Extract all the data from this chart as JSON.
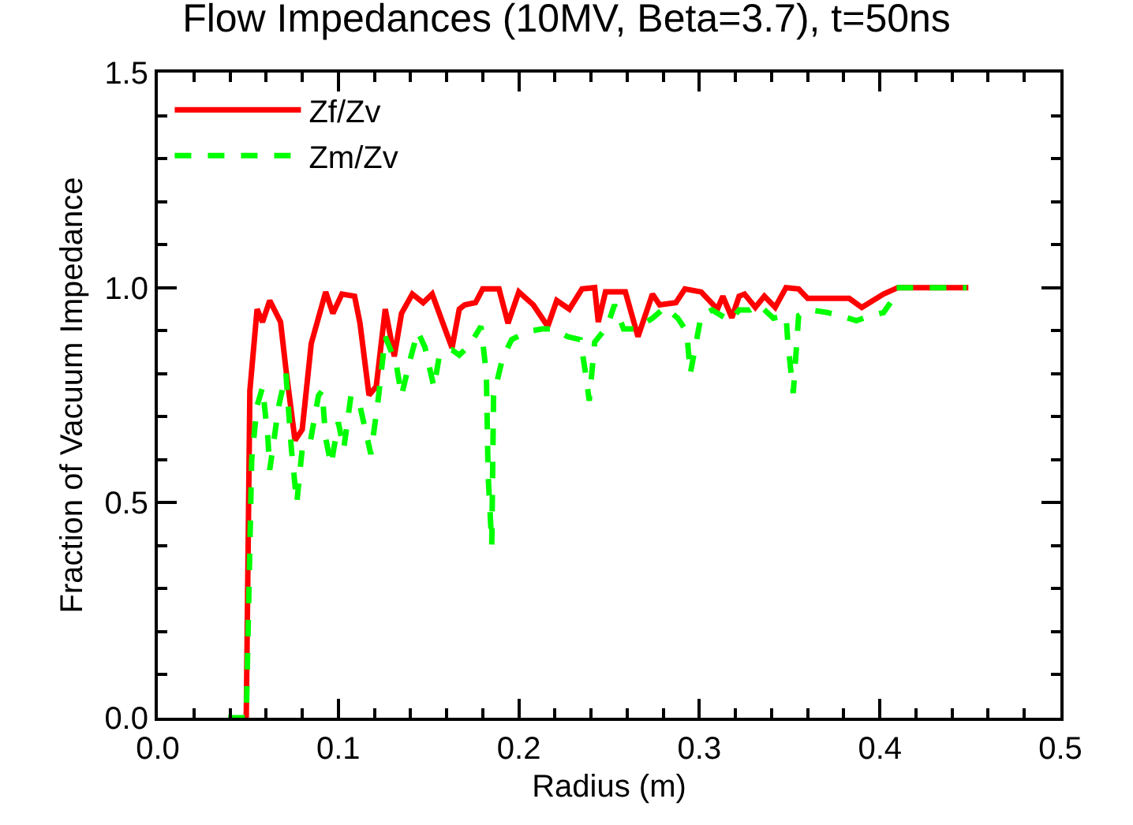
{
  "chart_data": {
    "type": "line",
    "title": "Flow Impedances (10MV, Beta=3.7), t=50ns",
    "xlabel": "Radius (m)",
    "ylabel": "Fraction of Vacuum Impedance",
    "xlim": [
      0,
      0.5
    ],
    "xticks": [
      {
        "value": 0,
        "label": "0.0"
      },
      0.1,
      0.2,
      0.3,
      0.4,
      0.5
    ],
    "ylim": [
      0,
      1.5
    ],
    "yticks": [
      {
        "value": 0,
        "label": "0.0"
      },
      0.5,
      {
        "value": 1,
        "label": "1.0"
      },
      1.5
    ],
    "legend": "top left",
    "series": [
      {
        "name": "Zf/Zv",
        "color": "#ff0000",
        "line_style": "solid",
        "x": [
          0.049,
          0.051,
          0.055,
          0.058,
          0.062,
          0.068,
          0.071,
          0.076,
          0.08,
          0.085,
          0.093,
          0.097,
          0.102,
          0.109,
          0.112,
          0.117,
          0.121,
          0.126,
          0.131,
          0.135,
          0.141,
          0.147,
          0.152,
          0.159,
          0.163,
          0.167,
          0.17,
          0.176,
          0.18,
          0.189,
          0.194,
          0.2,
          0.208,
          0.216,
          0.221,
          0.228,
          0.235,
          0.242,
          0.244,
          0.248,
          0.259,
          0.266,
          0.274,
          0.278,
          0.287,
          0.292,
          0.301,
          0.31,
          0.313,
          0.318,
          0.322,
          0.325,
          0.331,
          0.336,
          0.342,
          0.348,
          0.355,
          0.36,
          0.383,
          0.39,
          0.402,
          0.41,
          0.449
        ],
        "values": [
          0,
          0.76,
          0.95,
          0.92,
          0.97,
          0.92,
          0.81,
          0.645,
          0.67,
          0.87,
          0.99,
          0.94,
          0.985,
          0.98,
          0.917,
          0.75,
          0.77,
          0.95,
          0.84,
          0.94,
          0.985,
          0.965,
          0.985,
          0.905,
          0.86,
          0.95,
          0.96,
          0.965,
          0.997,
          0.997,
          0.917,
          0.99,
          0.96,
          0.91,
          0.97,
          0.95,
          0.997,
          1.0,
          0.92,
          0.99,
          0.99,
          0.886,
          0.985,
          0.96,
          0.965,
          0.997,
          0.99,
          0.95,
          0.98,
          0.93,
          0.98,
          0.985,
          0.954,
          0.98,
          0.954,
          1.0,
          0.997,
          0.975,
          0.975,
          0.954,
          0.985,
          1.0,
          1.0
        ]
      },
      {
        "name": "Zm/Zv",
        "color": "#00ff00",
        "line_style": "dashed",
        "x": [
          0.039,
          0.049,
          0.052,
          0.055,
          0.058,
          0.061,
          0.062,
          0.067,
          0.071,
          0.074,
          0.077,
          0.08,
          0.084,
          0.089,
          0.091,
          0.093,
          0.096,
          0.1,
          0.103,
          0.107,
          0.112,
          0.118,
          0.122,
          0.126,
          0.132,
          0.135,
          0.14,
          0.144,
          0.148,
          0.153,
          0.156,
          0.163,
          0.167,
          0.173,
          0.179,
          0.182,
          0.183,
          0.185,
          0.186,
          0.191,
          0.196,
          0.205,
          0.213,
          0.22,
          0.227,
          0.234,
          0.237,
          0.239,
          0.242,
          0.249,
          0.253,
          0.258,
          0.265,
          0.274,
          0.281,
          0.288,
          0.293,
          0.295,
          0.298,
          0.301,
          0.307,
          0.317,
          0.322,
          0.328,
          0.333,
          0.341,
          0.348,
          0.349,
          0.352,
          0.355,
          0.362,
          0.371,
          0.378,
          0.387,
          0.395,
          0.402,
          0.406,
          0.409,
          0.448
        ],
        "values": [
          0,
          0,
          0.6,
          0.725,
          0.768,
          0.65,
          0.576,
          0.725,
          0.8,
          0.625,
          0.5,
          0.625,
          0.63,
          0.749,
          0.76,
          0.65,
          0.588,
          0.687,
          0.625,
          0.749,
          0.725,
          0.613,
          0.737,
          0.886,
          0.824,
          0.749,
          0.836,
          0.898,
          0.861,
          0.768,
          0.843,
          0.855,
          0.843,
          0.868,
          0.91,
          0.8,
          0.563,
          0.402,
          0.749,
          0.836,
          0.879,
          0.898,
          0.904,
          0.904,
          0.886,
          0.879,
          0.8,
          0.737,
          0.873,
          0.91,
          0.96,
          0.904,
          0.904,
          0.929,
          0.954,
          0.929,
          0.898,
          0.8,
          0.868,
          0.935,
          0.948,
          0.923,
          0.948,
          0.948,
          0.96,
          0.929,
          0.935,
          0.873,
          0.755,
          0.935,
          0.948,
          0.942,
          0.935,
          0.923,
          0.935,
          0.942,
          0.966,
          1.0,
          1.0
        ]
      }
    ]
  }
}
